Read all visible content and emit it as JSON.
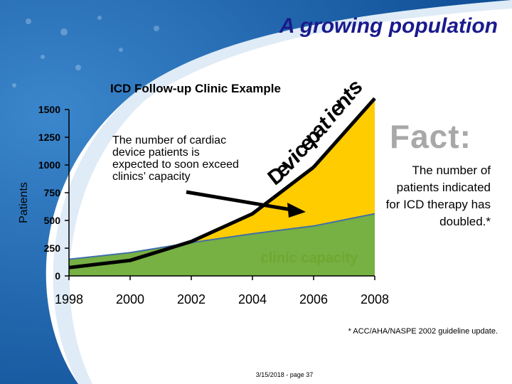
{
  "slide": {
    "title": "A growing population",
    "fact_heading": "Fact:",
    "fact_text": "The number of patients indicated for ICD therapy has doubled.*",
    "footnote": "* ACC/AHA/NASPE 2002 guideline update.",
    "footer": "3/15/2018 - page 37"
  },
  "colors": {
    "title": "#1a1a8c",
    "patients_area": "#ffcc00",
    "capacity_area": "#77b043",
    "curve": "#000000",
    "fact_heading": "#a8a8a8",
    "background_swoosh": "#2a6db5"
  },
  "chart_data": {
    "type": "area",
    "title": "ICD Follow-up Clinic Example",
    "xlabel": "",
    "ylabel": "Patients",
    "xlim": [
      1998,
      2008
    ],
    "ylim": [
      0,
      1500
    ],
    "x_ticks": [
      "1998",
      "2000",
      "2002",
      "2004",
      "2006",
      "2008"
    ],
    "y_ticks": [
      "0",
      "250",
      "500",
      "750",
      "1000",
      "1250",
      "1500"
    ],
    "grid": false,
    "series": [
      {
        "name": "Device patients",
        "x": [
          1998,
          2000,
          2002,
          2004,
          2006,
          2008
        ],
        "y": [
          75,
          140,
          310,
          560,
          980,
          1600
        ]
      },
      {
        "name": "clinic capacity",
        "x": [
          1998,
          2000,
          2002,
          2004,
          2006,
          2008
        ],
        "y": [
          150,
          210,
          300,
          380,
          450,
          560
        ]
      }
    ],
    "curve_label": "Device patients",
    "capacity_label": "clinic capacity",
    "annotation": "The number of cardiac device patients is expected to soon exceed clinics’ capacity",
    "legend": "none"
  }
}
